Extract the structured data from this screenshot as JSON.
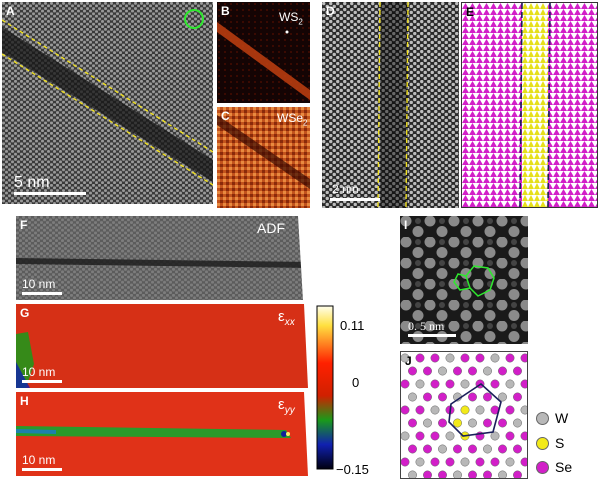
{
  "panels": {
    "A": {
      "label": "A",
      "scalebar": "5 nm"
    },
    "B": {
      "label": "B",
      "tag": "WS",
      "sub": "2"
    },
    "C": {
      "label": "C",
      "tag": "WSe",
      "sub": "2"
    },
    "D": {
      "label": "D",
      "scalebar": "2 nm"
    },
    "E": {
      "label": "E"
    },
    "F": {
      "label": "F",
      "tag": "ADF",
      "scalebar": "10 nm"
    },
    "G": {
      "label": "G",
      "eps": "ε",
      "sub": "xx",
      "scalebar": "10 nm"
    },
    "H": {
      "label": "H",
      "eps": "ε",
      "sub": "yy",
      "scalebar": "10 nm"
    },
    "I": {
      "label": "I",
      "scalebar": "0. 5  nm"
    },
    "J": {
      "label": "J"
    }
  },
  "colorbar": {
    "max": "0.11",
    "mid": "0",
    "min": "−0.15"
  },
  "legend": [
    {
      "symbol": "W",
      "color": "#b8b8b8"
    },
    {
      "symbol": "S",
      "color": "#f2ea1a"
    },
    {
      "symbol": "Se",
      "color": "#d21fc8"
    }
  ],
  "colors": {
    "accent_yellow": "#f0e020",
    "ring_green": "#2ee82e",
    "navy": "#1a1f5a",
    "magenta": "#d21fc8"
  }
}
